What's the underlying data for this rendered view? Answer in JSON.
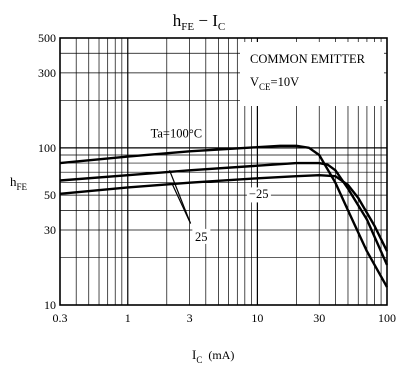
{
  "chart_data": {
    "type": "line",
    "title": {
      "main": "h",
      "sub": "FE",
      "mid": " − I",
      "sub2": "C"
    },
    "xlabel": {
      "main": "I",
      "sub": "C",
      "unit": "(mA)"
    },
    "ylabel": {
      "main": "h",
      "sub": "FE"
    },
    "x_scale": "log",
    "y_scale": "log",
    "xlim": [
      0.3,
      100
    ],
    "ylim": [
      10,
      500
    ],
    "x_ticks": [
      {
        "value": 0.3,
        "label": "0.3"
      },
      {
        "value": 1,
        "label": "1"
      },
      {
        "value": 3,
        "label": "3"
      },
      {
        "value": 10,
        "label": "10"
      },
      {
        "value": 30,
        "label": "30"
      },
      {
        "value": 100,
        "label": "100"
      }
    ],
    "y_ticks": [
      {
        "value": 10,
        "label": "10"
      },
      {
        "value": 30,
        "label": "30"
      },
      {
        "value": 50,
        "label": "50"
      },
      {
        "value": 100,
        "label": "100"
      },
      {
        "value": 300,
        "label": "300"
      },
      {
        "value": 500,
        "label": "500"
      }
    ],
    "grid": true,
    "legend_box": {
      "line1": "COMMON EMITTER",
      "line2_main": "V",
      "line2_sub": "CE",
      "line2_rest": "=10V"
    },
    "series": [
      {
        "name": "Ta=100°C",
        "x": [
          0.3,
          1,
          3,
          10,
          15,
          20,
          25,
          30,
          40,
          50,
          70,
          100
        ],
        "y": [
          80,
          88,
          95,
          101,
          103,
          103,
          100,
          90,
          60,
          40,
          22,
          13
        ]
      },
      {
        "name": "25",
        "x": [
          0.3,
          1,
          3,
          10,
          20,
          30,
          35,
          40,
          50,
          70,
          100
        ],
        "y": [
          62,
          67,
          72,
          77,
          80,
          80,
          78,
          72,
          55,
          35,
          18
        ]
      },
      {
        "name": "−25",
        "x": [
          0.3,
          1,
          3,
          10,
          20,
          30,
          40,
          50,
          60,
          80,
          100
        ],
        "y": [
          51,
          56,
          60,
          64,
          66,
          67,
          66,
          58,
          48,
          32,
          22
        ]
      }
    ],
    "annotations": [
      {
        "text": "Ta=100°C",
        "series": "Ta=100°C"
      },
      {
        "text": "−25",
        "series": "−25"
      },
      {
        "text": "25",
        "series": "25"
      }
    ]
  }
}
